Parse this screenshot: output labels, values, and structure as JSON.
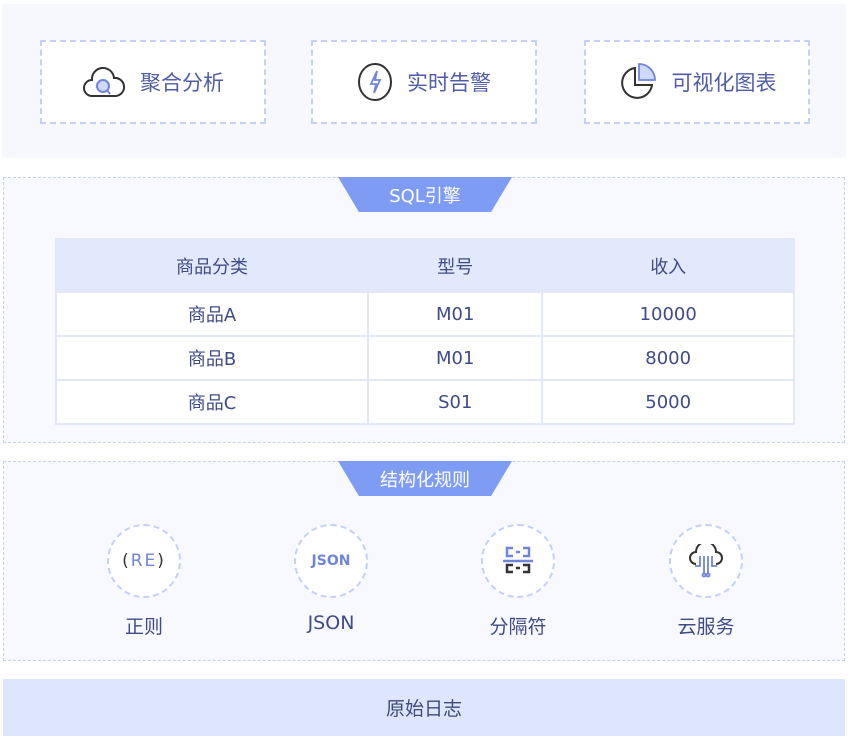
{
  "features": [
    {
      "label": "聚合分析",
      "icon": "cloud-search-icon"
    },
    {
      "label": "实时告警",
      "icon": "lightning-icon"
    },
    {
      "label": "可视化图表",
      "icon": "pie-chart-icon"
    }
  ],
  "sql": {
    "title": "SQL引擎",
    "headers": [
      "商品分类",
      "型号",
      "收入"
    ],
    "rows": [
      [
        "商品A",
        "M01",
        "10000"
      ],
      [
        "商品B",
        "M01",
        "8000"
      ],
      [
        "商品C",
        "S01",
        "5000"
      ]
    ]
  },
  "rules": {
    "title": "结构化规则",
    "items": [
      {
        "label": "正则",
        "icon": "regex-icon",
        "glyph": "RE"
      },
      {
        "label": "JSON",
        "icon": "json-icon",
        "glyph": "JSON"
      },
      {
        "label": "分隔符",
        "icon": "delimiter-icon"
      },
      {
        "label": "云服务",
        "icon": "cloud-service-icon"
      }
    ]
  },
  "bottom": {
    "label": "原始日志"
  },
  "colors": {
    "accent": "#7f9cf5",
    "text": "#46528f",
    "border": "#c4d0f7"
  }
}
